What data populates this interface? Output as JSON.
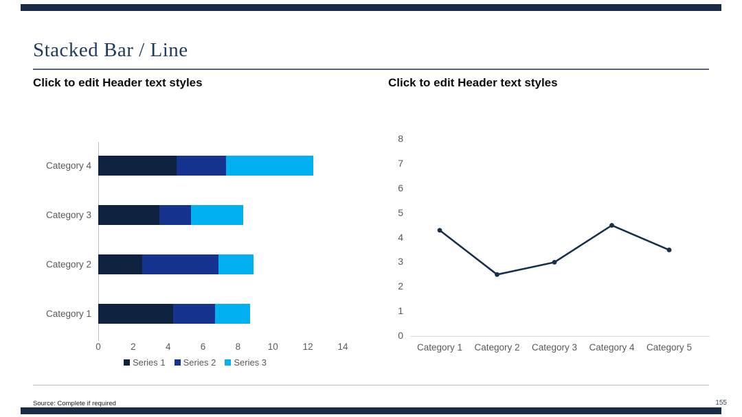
{
  "slide": {
    "title": "Stacked Bar / Line",
    "source_note": "Source: Complete if required",
    "page_number": "155",
    "accent_color": "#1b2a47"
  },
  "left_panel": {
    "header": "Click to edit Header text styles"
  },
  "right_panel": {
    "header": "Click to edit Header text styles"
  },
  "chart_data": [
    {
      "type": "bar",
      "orientation": "horizontal",
      "stacked": true,
      "title": "",
      "categories": [
        "Category 1",
        "Category 2",
        "Category 3",
        "Category 4"
      ],
      "series": [
        {
          "name": "Series 1",
          "color": "#0e2240",
          "values": [
            4.3,
            2.5,
            3.5,
            4.5
          ]
        },
        {
          "name": "Series 2",
          "color": "#16338f",
          "values": [
            2.4,
            4.4,
            1.8,
            2.8
          ]
        },
        {
          "name": "Series 3",
          "color": "#00b0f0",
          "values": [
            2.0,
            2.0,
            3.0,
            5.0
          ]
        }
      ],
      "totals": [
        8.7,
        8.9,
        8.3,
        12.3
      ],
      "xlim": [
        0,
        14
      ],
      "x_ticks": [
        0,
        2,
        4,
        6,
        8,
        10,
        12,
        14
      ],
      "grid": false,
      "legend_position": "bottom",
      "axis_color": "#bfbfbf",
      "label_color": "#595959"
    },
    {
      "type": "line",
      "title": "",
      "categories": [
        "Category 1",
        "Category 2",
        "Category 3",
        "Category 4",
        "Category 5"
      ],
      "series": [
        {
          "name": "Series 1",
          "color": "#16304e",
          "values": [
            4.3,
            2.5,
            3.0,
            4.5,
            3.5
          ]
        }
      ],
      "ylim": [
        0,
        8
      ],
      "y_ticks": [
        0,
        1,
        2,
        3,
        4,
        5,
        6,
        7,
        8
      ],
      "grid": false,
      "markers": true,
      "legend_position": "none",
      "axis_color": "#d9d9d9",
      "label_color": "#595959"
    }
  ]
}
